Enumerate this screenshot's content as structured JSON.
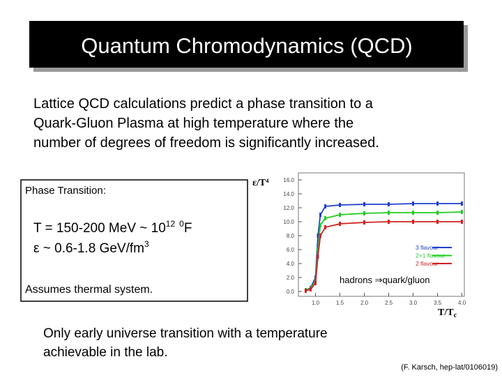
{
  "title": "Quantum Chromodynamics (QCD)",
  "intro": [
    "Lattice QCD calculations predict a phase transition to a",
    "Quark-Gluon Plasma at high temperature where the",
    "number of degrees of freedom is significantly increased."
  ],
  "box": {
    "heading": "Phase Transition:",
    "line1": [
      "T = 150-200 MeV ~ 10",
      "12",
      "0",
      "F"
    ],
    "line2": [
      "ε ~  0.6-1.8 GeV/fm",
      "3"
    ],
    "note": "Assumes thermal system."
  },
  "conclusion": [
    "Only early universe transition with a temperature",
    "achievable in the lab."
  ],
  "citation": "(F. Karsch, hep-lat/0106019)",
  "chart_data": {
    "type": "line",
    "y_label": "ε/T⁴",
    "x_label": "T/T",
    "x_label_sub": "c",
    "annotation": "hadrons ⇒quark/gluon",
    "x": [
      0.8,
      0.9,
      1.0,
      1.05,
      1.1,
      1.2,
      1.5,
      2.0,
      2.5,
      3.0,
      3.5,
      4.0
    ],
    "series": [
      {
        "name": "3 flavour",
        "color": "#1f3fd0",
        "values": [
          0.2,
          0.5,
          2,
          8,
          11,
          12.2,
          12.4,
          12.5,
          12.5,
          12.6,
          12.6,
          12.6
        ]
      },
      {
        "name": "2+1 flavour",
        "color": "#22cc22",
        "values": [
          0.2,
          0.4,
          1.5,
          6,
          9.5,
          10.5,
          11,
          11.2,
          11.3,
          11.3,
          11.3,
          11.4
        ]
      },
      {
        "name": "2 flavour",
        "color": "#d02020",
        "values": [
          0.1,
          0.3,
          1.2,
          5,
          8,
          9.2,
          9.7,
          9.9,
          10,
          10,
          10,
          10
        ]
      }
    ],
    "xlim": [
      0.65,
      4.05
    ],
    "ylim": [
      -0.7,
      17
    ],
    "xticks": [
      {
        "value": 1,
        "label": "1.0"
      },
      {
        "value": 1.5,
        "label": "1.5"
      },
      {
        "value": 2,
        "label": "2.0"
      },
      {
        "value": 2.5,
        "label": "2.5"
      },
      {
        "value": 3,
        "label": "3.0"
      },
      {
        "value": 3.5,
        "label": "3.5"
      },
      {
        "value": 4,
        "label": "4.0"
      }
    ],
    "yticks": [
      {
        "value": 0,
        "label": "0.0"
      },
      {
        "value": 2,
        "label": "2.0"
      },
      {
        "value": 4,
        "label": "4.0"
      },
      {
        "value": 6,
        "label": "6.0"
      },
      {
        "value": 8,
        "label": "8.0"
      },
      {
        "value": 10,
        "label": "10.0"
      },
      {
        "value": 12,
        "label": "12.0"
      },
      {
        "value": 14,
        "label": "14.0"
      },
      {
        "value": 16,
        "label": "16.0"
      }
    ],
    "legend": "lower right"
  }
}
